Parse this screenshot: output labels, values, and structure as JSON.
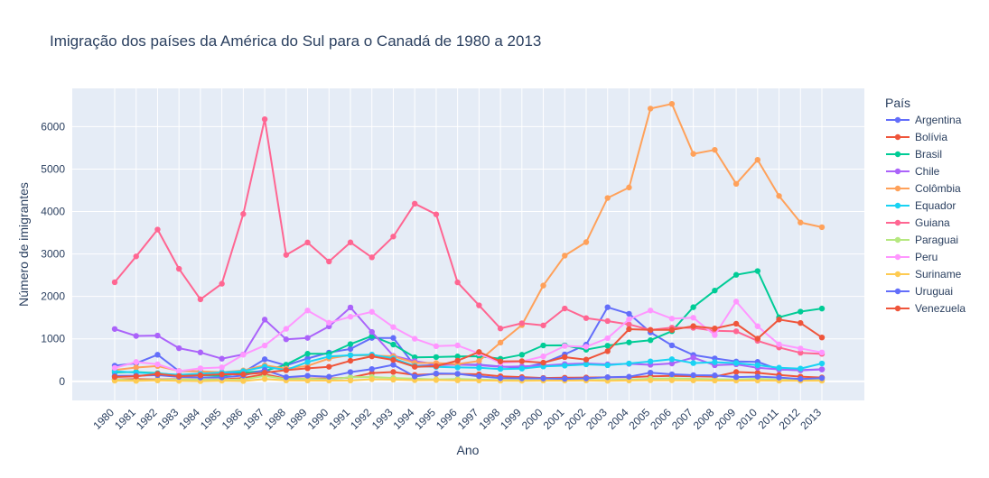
{
  "chart_data": {
    "type": "line",
    "title": "Imigração dos países da América do Sul para o Canadá de 1980 a 2013",
    "xlabel": "Ano",
    "ylabel": "Número de imigrantes",
    "legend_title": "País",
    "legend_placement": "right",
    "grid": true,
    "ylim": [
      -450,
      6900
    ],
    "yticks": [
      0,
      1000,
      2000,
      3000,
      4000,
      5000,
      6000
    ],
    "x": [
      "1980",
      "1981",
      "1982",
      "1983",
      "1984",
      "1985",
      "1986",
      "1987",
      "1988",
      "1989",
      "1990",
      "1991",
      "1992",
      "1993",
      "1994",
      "1995",
      "1996",
      "1997",
      "1998",
      "1999",
      "2000",
      "2001",
      "2002",
      "2003",
      "2004",
      "2005",
      "2006",
      "2007",
      "2008",
      "2009",
      "2010",
      "2011",
      "2012",
      "2013"
    ],
    "series": [
      {
        "name": "Argentina",
        "color": "#636efa",
        "values": [
          368,
          426,
          626,
          241,
          237,
          196,
          213,
          519,
          374,
          538,
          678,
          763,
          1023,
          1022,
          366,
          380,
          396,
          391,
          349,
          318,
          427,
          635,
          865,
          1745,
          1591,
          1153,
          847,
          620,
          540,
          467,
          459,
          278,
          263,
          282
        ]
      },
      {
        "name": "Bolívia",
        "color": "#EF553B",
        "values": [
          44,
          52,
          42,
          49,
          38,
          44,
          79,
          165,
          63,
          68,
          66,
          88,
          196,
          220,
          150,
          175,
          175,
          165,
          120,
          100,
          80,
          85,
          90,
          94,
          98,
          120,
          130,
          120,
          110,
          220,
          200,
          150,
          110,
          90
        ]
      },
      {
        "name": "Brasil",
        "color": "#00cc96",
        "values": [
          211,
          220,
          192,
          139,
          145,
          130,
          205,
          244,
          394,
          650,
          650,
          877,
          1066,
          866,
          566,
          572,
          586,
          591,
          531,
          626,
          845,
          847,
          745,
          839,
          917,
          969,
          1181,
          1746,
          2138,
          2509,
          2598,
          1508,
          1642,
          1714
        ]
      },
      {
        "name": "Chile",
        "color": "#ab63fa",
        "values": [
          1233,
          1069,
          1078,
          781,
          681,
          533,
          633,
          1454,
          990,
          1023,
          1294,
          1740,
          1163,
          601,
          476,
          400,
          391,
          378,
          342,
          351,
          371,
          407,
          420,
          400,
          412,
          390,
          420,
          560,
          380,
          400,
          320,
          280,
          260,
          280
        ]
      },
      {
        "name": "Colômbia",
        "color": "#FFA15A",
        "values": [
          266,
          326,
          360,
          244,
          235,
          214,
          257,
          376,
          299,
          363,
          537,
          619,
          608,
          590,
          433,
          431,
          406,
          481,
          913,
          1325,
          2256,
          2961,
          3278,
          4318,
          4566,
          6424,
          6535,
          5357,
          5452,
          4652,
          5218,
          4366,
          3741,
          3631
        ]
      },
      {
        "name": "Equador",
        "color": "#19d3f3",
        "values": [
          238,
          207,
          184,
          155,
          179,
          208,
          240,
          344,
          265,
          455,
          585,
          614,
          630,
          540,
          361,
          341,
          327,
          318,
          290,
          300,
          350,
          370,
          400,
          380,
          420,
          470,
          520,
          430,
          450,
          430,
          380,
          320,
          300,
          420
        ]
      },
      {
        "name": "Guiana",
        "color": "#FF6692",
        "values": [
          2334,
          2943,
          3575,
          2650,
          1932,
          2299,
          3942,
          6174,
          2977,
          3270,
          2822,
          3273,
          2920,
          3410,
          4185,
          3933,
          2331,
          1790,
          1245,
          1368,
          1318,
          1716,
          1489,
          1420,
          1340,
          1210,
          1264,
          1261,
          1190,
          1178,
          954,
          798,
          672,
          647
        ]
      },
      {
        "name": "Paraguai",
        "color": "#B6E880",
        "values": [
          45,
          26,
          32,
          40,
          38,
          36,
          46,
          127,
          56,
          60,
          48,
          96,
          103,
          80,
          62,
          45,
          55,
          40,
          30,
          25,
          22,
          35,
          30,
          33,
          40,
          60,
          70,
          60,
          50,
          40,
          60,
          38,
          30,
          36
        ]
      },
      {
        "name": "Peru",
        "color": "#FF97FF",
        "values": [
          317,
          456,
          401,
          241,
          306,
          328,
          628,
          843,
          1237,
          1668,
          1380,
          1521,
          1637,
          1278,
          1003,
          828,
          846,
          656,
          433,
          468,
          588,
          833,
          815,
          1015,
          1461,
          1668,
          1477,
          1498,
          1090,
          1879,
          1297,
          872,
          773,
          680
        ]
      },
      {
        "name": "Suriname",
        "color": "#FECB52",
        "values": [
          15,
          10,
          21,
          12,
          5,
          16,
          7,
          55,
          21,
          20,
          18,
          20,
          50,
          40,
          28,
          30,
          24,
          20,
          16,
          14,
          18,
          17,
          20,
          12,
          20,
          25,
          25,
          22,
          18,
          18,
          20,
          15,
          15,
          15
        ]
      },
      {
        "name": "Uruguai",
        "color": "#636efa",
        "values": [
          128,
          132,
          146,
          105,
          90,
          92,
          137,
          269,
          99,
          132,
          108,
          218,
          290,
          390,
          115,
          185,
          178,
          120,
          75,
          70,
          68,
          60,
          70,
          98,
          108,
          205,
          165,
          145,
          140,
          100,
          110,
          90,
          55,
          75
        ]
      },
      {
        "name": "Venezuela",
        "color": "#EF553B",
        "values": [
          103,
          117,
          174,
          124,
          142,
          165,
          167,
          203,
          263,
          307,
          343,
          484,
          588,
          504,
          343,
          358,
          487,
          691,
          468,
          475,
          440,
          570,
          512,
          710,
          1229,
          1211,
          1211,
          1300,
          1246,
          1356,
          1005,
          1455,
          1374,
          1033
        ]
      }
    ]
  }
}
